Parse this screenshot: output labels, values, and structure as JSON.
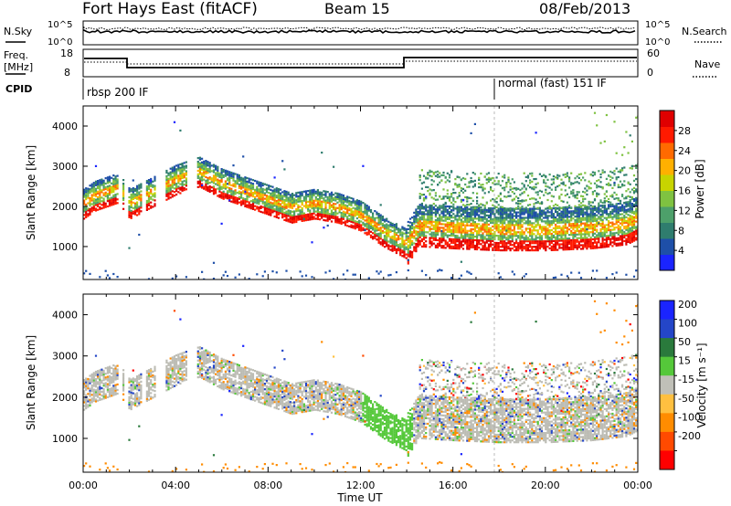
{
  "header": {
    "station": "Fort Hays East (fitACF)",
    "beam": "Beam 15",
    "date": "08/Feb/2013"
  },
  "summary": {
    "left_label": "N.Sky",
    "right_label": "N.Search",
    "nsky_ticks": [
      "10^5",
      "10^0"
    ],
    "nsearch_ticks": [
      "10^5",
      "10^0"
    ],
    "freq_label_1": "Freq.",
    "freq_label_2": "[MHz]",
    "freq_ticks": [
      "18",
      "8"
    ],
    "nave_label": "Nave",
    "nave_ticks": [
      "60",
      "0"
    ],
    "cpid_label": "CPID",
    "cpid_1": "rbsp 200 IF",
    "cpid_2": "normal (fast) 151 IF"
  },
  "panels": {
    "ylabel": "Slant Range [km]",
    "xlabel": "Time UT",
    "yticks": [
      "1000",
      "2000",
      "3000",
      "4000"
    ],
    "xticks": [
      "00:00",
      "04:00",
      "08:00",
      "12:00",
      "16:00",
      "20:00",
      "00:00"
    ]
  },
  "colorbars": {
    "power": {
      "label": "Power [dB]",
      "ticks": [
        "4",
        "8",
        "12",
        "16",
        "20",
        "24",
        "28"
      ]
    },
    "velocity": {
      "label": "Velocity [m s⁻¹]",
      "ticks": [
        "200",
        "100",
        "50",
        "15",
        "-15",
        "-50",
        "-100",
        "-200"
      ]
    }
  },
  "colors": {
    "power_scale": [
      "#1a24ff",
      "#1e4fa8",
      "#2f7d6e",
      "#4da06a",
      "#7fc241",
      "#c7d400",
      "#ffb000",
      "#ff6a00",
      "#ff1a00",
      "#e00000"
    ],
    "velocity_scale": [
      "#1a24ff",
      "#2446c8",
      "#2a7a3c",
      "#55c83a",
      "#c0c0b8",
      "#ffc040",
      "#ff8c00",
      "#ff4a00",
      "#ff0000"
    ],
    "ground_scatter": "#bcbcb4"
  },
  "chart_data": [
    {
      "type": "heatmap",
      "title": "Power",
      "xlabel": "Time UT",
      "ylabel": "Slant Range [km]",
      "xlim": [
        "00:00",
        "24:00"
      ],
      "ylim": [
        180,
        4500
      ],
      "colorbar": {
        "label": "Power [dB]",
        "range": [
          0,
          32
        ]
      },
      "scatter_band_center_km": {
        "time_h": [
          0.0,
          0.5,
          1.0,
          1.5,
          2.0,
          3.0,
          4.0,
          5.0,
          6.0,
          7.0,
          8.0,
          9.0,
          10.0,
          11.0,
          12.0,
          13.0,
          14.0,
          14.5,
          16.0,
          18.0,
          20.0,
          22.0,
          23.5,
          24.0
        ],
        "range_km": [
          2100,
          2300,
          2400,
          2500,
          2100,
          2400,
          2700,
          2900,
          2600,
          2400,
          2200,
          2000,
          2100,
          2000,
          1800,
          1400,
          1100,
          1550,
          1500,
          1450,
          1450,
          1500,
          1600,
          1750
        ]
      }
    },
    {
      "type": "heatmap",
      "title": "Velocity",
      "xlabel": "Time UT",
      "ylabel": "Slant Range [km]",
      "xlim": [
        "00:00",
        "24:00"
      ],
      "ylim": [
        180,
        4500
      ],
      "colorbar": {
        "label": "Velocity [m s⁻¹]",
        "range": [
          -200,
          200
        ]
      },
      "dominant_class": "ground scatter (gray)"
    }
  ]
}
